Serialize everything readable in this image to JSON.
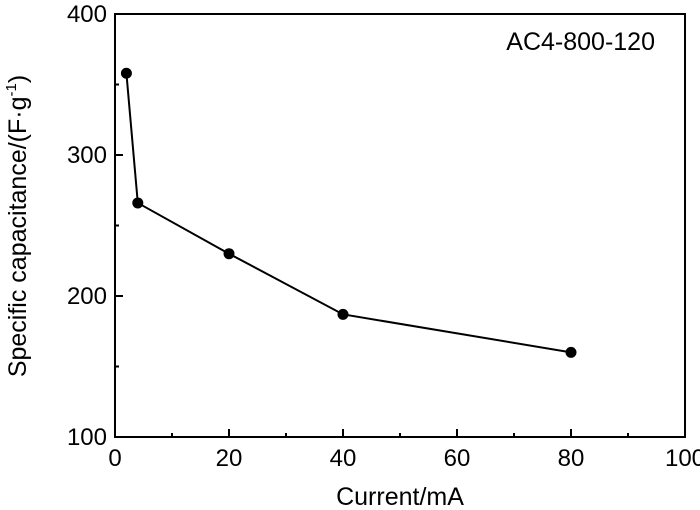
{
  "chart_data": {
    "type": "line",
    "title": "",
    "xlabel": "Current/mA",
    "ylabel": "Specific capacitance/(F·g",
    "ylabel_sup": "-1",
    "ylabel_close": ")",
    "annotation": "AC4-800-120",
    "xlim": [
      0,
      100
    ],
    "ylim": [
      100,
      400
    ],
    "xticks": [
      0,
      20,
      40,
      60,
      80,
      100
    ],
    "yticks": [
      100,
      200,
      300,
      400
    ],
    "grid": false,
    "series": [
      {
        "x": [
          2,
          4,
          20,
          40,
          80
        ],
        "y": [
          358,
          266,
          230,
          187,
          160
        ]
      }
    ]
  }
}
